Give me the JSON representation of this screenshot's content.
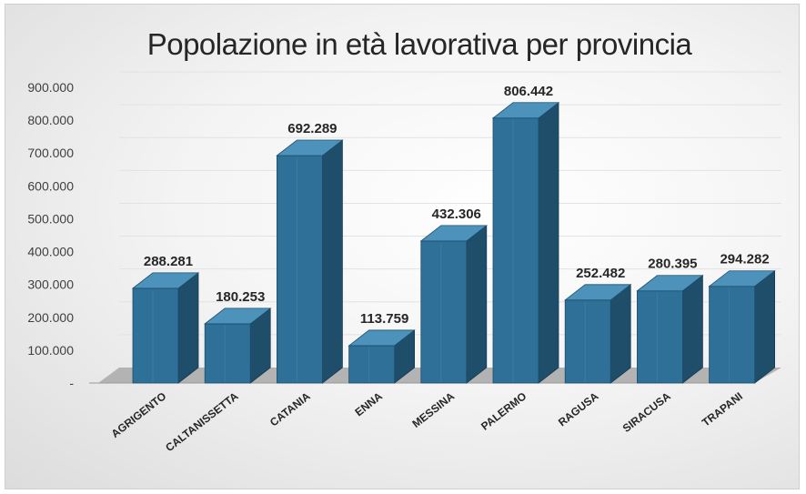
{
  "chart_data": {
    "type": "bar",
    "title": "Popolazione in età lavorativa per provincia",
    "xlabel": "",
    "ylabel": "",
    "categories": [
      "AGRIGENTO",
      "CALTANISSETTA",
      "CATANIA",
      "ENNA",
      "MESSINA",
      "PALERMO",
      "RAGUSA",
      "SIRACUSA",
      "TRAPANI"
    ],
    "values": [
      288281,
      180253,
      692289,
      113759,
      432306,
      806442,
      252482,
      280395,
      294282
    ],
    "value_labels": [
      "288.281",
      "180.253",
      "692.289",
      "113.759",
      "432.306",
      "806.442",
      "252.482",
      "280.395",
      "294.282"
    ],
    "ylim": [
      0,
      900000
    ],
    "yticks": [
      0,
      100000,
      200000,
      300000,
      400000,
      500000,
      600000,
      700000,
      800000,
      900000
    ],
    "ytick_labels": [
      "-",
      "100.000",
      "200.000",
      "300.000",
      "400.000",
      "500.000",
      "600.000",
      "700.000",
      "800.000",
      "900.000"
    ],
    "grid": true,
    "legend": "none",
    "style": "3d-column",
    "colors": {
      "bar_front": "#2E7097",
      "bar_side": "#1F4E6B",
      "bar_top": "#4C92BA",
      "floor": "#b3b3b3",
      "gridline": "#e2e2e2",
      "text": "#262626"
    }
  }
}
